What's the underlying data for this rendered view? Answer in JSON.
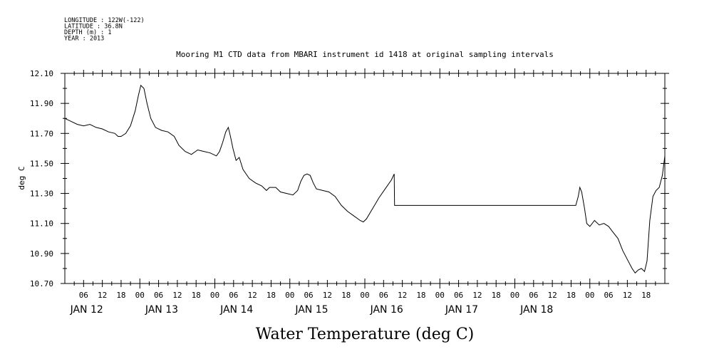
{
  "header": {
    "lines": [
      "LONGITUDE : 122W(-122)",
      "LATITUDE : 36.8N",
      "DEPTH (m) : 1",
      "YEAR : 2013"
    ]
  },
  "chart_data": {
    "type": "line",
    "title": "Mooring M1 CTD data from MBARI instrument id 1418 at original sampling intervals",
    "xlabel": "Water Temperature (deg C)",
    "ylabel": "deg C",
    "ylim": [
      10.7,
      12.1
    ],
    "xlim_hours": [
      0,
      192
    ],
    "yticks": [
      "12.10",
      "11.90",
      "11.70",
      "11.50",
      "11.30",
      "11.10",
      "10.90",
      "10.70"
    ],
    "hour_ticks": [
      "06",
      "12",
      "18",
      "00"
    ],
    "day_labels": [
      "JAN 12",
      "JAN 13",
      "JAN 14",
      "JAN 15",
      "JAN 16",
      "JAN 17",
      "JAN 18"
    ],
    "grid": false,
    "series": [
      {
        "color": "#000000",
        "points": [
          [
            0,
            11.8
          ],
          [
            2,
            11.78
          ],
          [
            4,
            11.76
          ],
          [
            6,
            11.75
          ],
          [
            8,
            11.76
          ],
          [
            10,
            11.74
          ],
          [
            12,
            11.73
          ],
          [
            14,
            11.71
          ],
          [
            16,
            11.7
          ],
          [
            17,
            11.68
          ],
          [
            18,
            11.68
          ],
          [
            19.5,
            11.7
          ],
          [
            21,
            11.75
          ],
          [
            22.5,
            11.85
          ],
          [
            23.5,
            11.95
          ],
          [
            24.3,
            12.02
          ],
          [
            25.3,
            12.0
          ],
          [
            26.3,
            11.9
          ],
          [
            27.5,
            11.8
          ],
          [
            29,
            11.74
          ],
          [
            31,
            11.72
          ],
          [
            33,
            11.71
          ],
          [
            35,
            11.68
          ],
          [
            36.5,
            11.62
          ],
          [
            38.5,
            11.58
          ],
          [
            40.5,
            11.56
          ],
          [
            42.5,
            11.59
          ],
          [
            44.5,
            11.58
          ],
          [
            46.5,
            11.57
          ],
          [
            48.5,
            11.55
          ],
          [
            49.5,
            11.58
          ],
          [
            50.5,
            11.64
          ],
          [
            51.5,
            11.71
          ],
          [
            52.3,
            11.74
          ],
          [
            53,
            11.68
          ],
          [
            53.8,
            11.6
          ],
          [
            54.8,
            11.52
          ],
          [
            55.8,
            11.54
          ],
          [
            57,
            11.46
          ],
          [
            59,
            11.4
          ],
          [
            61,
            11.37
          ],
          [
            63,
            11.35
          ],
          [
            64.5,
            11.32
          ],
          [
            65.5,
            11.34
          ],
          [
            67.5,
            11.34
          ],
          [
            69,
            11.31
          ],
          [
            71,
            11.3
          ],
          [
            73,
            11.29
          ],
          [
            74.5,
            11.32
          ],
          [
            75.5,
            11.38
          ],
          [
            76.5,
            11.42
          ],
          [
            77.5,
            11.43
          ],
          [
            78.5,
            11.42
          ],
          [
            79.5,
            11.37
          ],
          [
            80.5,
            11.33
          ],
          [
            82.5,
            11.32
          ],
          [
            84.5,
            11.31
          ],
          [
            86.5,
            11.28
          ],
          [
            88.5,
            11.22
          ],
          [
            90.5,
            11.18
          ],
          [
            92.5,
            11.15
          ],
          [
            94.5,
            11.12
          ],
          [
            95.5,
            11.11
          ],
          [
            96.5,
            11.13
          ],
          [
            98.5,
            11.2
          ],
          [
            100.5,
            11.27
          ],
          [
            102.5,
            11.33
          ],
          [
            104.5,
            11.39
          ],
          [
            105.4,
            11.43
          ],
          [
            105.5,
            11.22
          ],
          [
            163.5,
            11.22
          ],
          [
            164.3,
            11.28
          ],
          [
            164.8,
            11.34
          ],
          [
            165.4,
            11.31
          ],
          [
            166.3,
            11.2
          ],
          [
            167,
            11.1
          ],
          [
            168,
            11.08
          ],
          [
            169.5,
            11.12
          ],
          [
            171,
            11.09
          ],
          [
            172.5,
            11.1
          ],
          [
            174,
            11.08
          ],
          [
            175.5,
            11.04
          ],
          [
            177,
            11.0
          ],
          [
            178.5,
            10.92
          ],
          [
            180,
            10.86
          ],
          [
            181.5,
            10.8
          ],
          [
            182.5,
            10.77
          ],
          [
            183.5,
            10.79
          ],
          [
            184.5,
            10.8
          ],
          [
            185.5,
            10.78
          ],
          [
            186.3,
            10.85
          ],
          [
            187.2,
            11.12
          ],
          [
            188.2,
            11.28
          ],
          [
            189.2,
            11.32
          ],
          [
            190.2,
            11.34
          ],
          [
            191.2,
            11.42
          ],
          [
            192,
            11.55
          ]
        ]
      }
    ]
  }
}
